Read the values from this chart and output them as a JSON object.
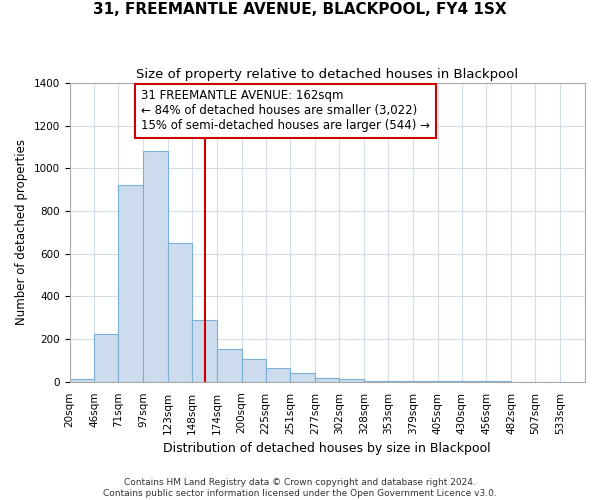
{
  "title": "31, FREEMANTLE AVENUE, BLACKPOOL, FY4 1SX",
  "subtitle": "Size of property relative to detached houses in Blackpool",
  "xlabel": "Distribution of detached houses by size in Blackpool",
  "ylabel": "Number of detached properties",
  "footer_line1": "Contains HM Land Registry data © Crown copyright and database right 2024.",
  "footer_line2": "Contains public sector information licensed under the Open Government Licence v3.0.",
  "bin_labels": [
    "20sqm",
    "46sqm",
    "71sqm",
    "97sqm",
    "123sqm",
    "148sqm",
    "174sqm",
    "200sqm",
    "225sqm",
    "251sqm",
    "277sqm",
    "302sqm",
    "328sqm",
    "353sqm",
    "379sqm",
    "405sqm",
    "430sqm",
    "456sqm",
    "482sqm",
    "507sqm",
    "533sqm"
  ],
  "bar_heights": [
    15,
    225,
    920,
    1080,
    650,
    290,
    155,
    105,
    65,
    40,
    20,
    15,
    5,
    5,
    5,
    3,
    2,
    2,
    1,
    0
  ],
  "bar_color": "#ccdcee",
  "bar_edge_color": "#7bafd4",
  "grid_color": "#d4dce8",
  "background_color": "#ffffff",
  "axes_background_color": "#ffffff",
  "red_line_x": 162,
  "bin_edges": [
    20,
    46,
    71,
    97,
    123,
    148,
    174,
    200,
    225,
    251,
    277,
    302,
    328,
    353,
    379,
    405,
    430,
    456,
    482,
    507,
    533
  ],
  "annotation_text": "31 FREEMANTLE AVENUE: 162sqm\n← 84% of detached houses are smaller (3,022)\n15% of semi-detached houses are larger (544) →",
  "annotation_box_color": "#ffffff",
  "annotation_border_color": "#cc0000",
  "ylim": [
    0,
    1400
  ],
  "yticks": [
    0,
    200,
    400,
    600,
    800,
    1000,
    1200,
    1400
  ],
  "title_fontsize": 11,
  "subtitle_fontsize": 9.5,
  "xlabel_fontsize": 9,
  "ylabel_fontsize": 8.5,
  "tick_fontsize": 7.5,
  "annotation_fontsize": 8.5
}
